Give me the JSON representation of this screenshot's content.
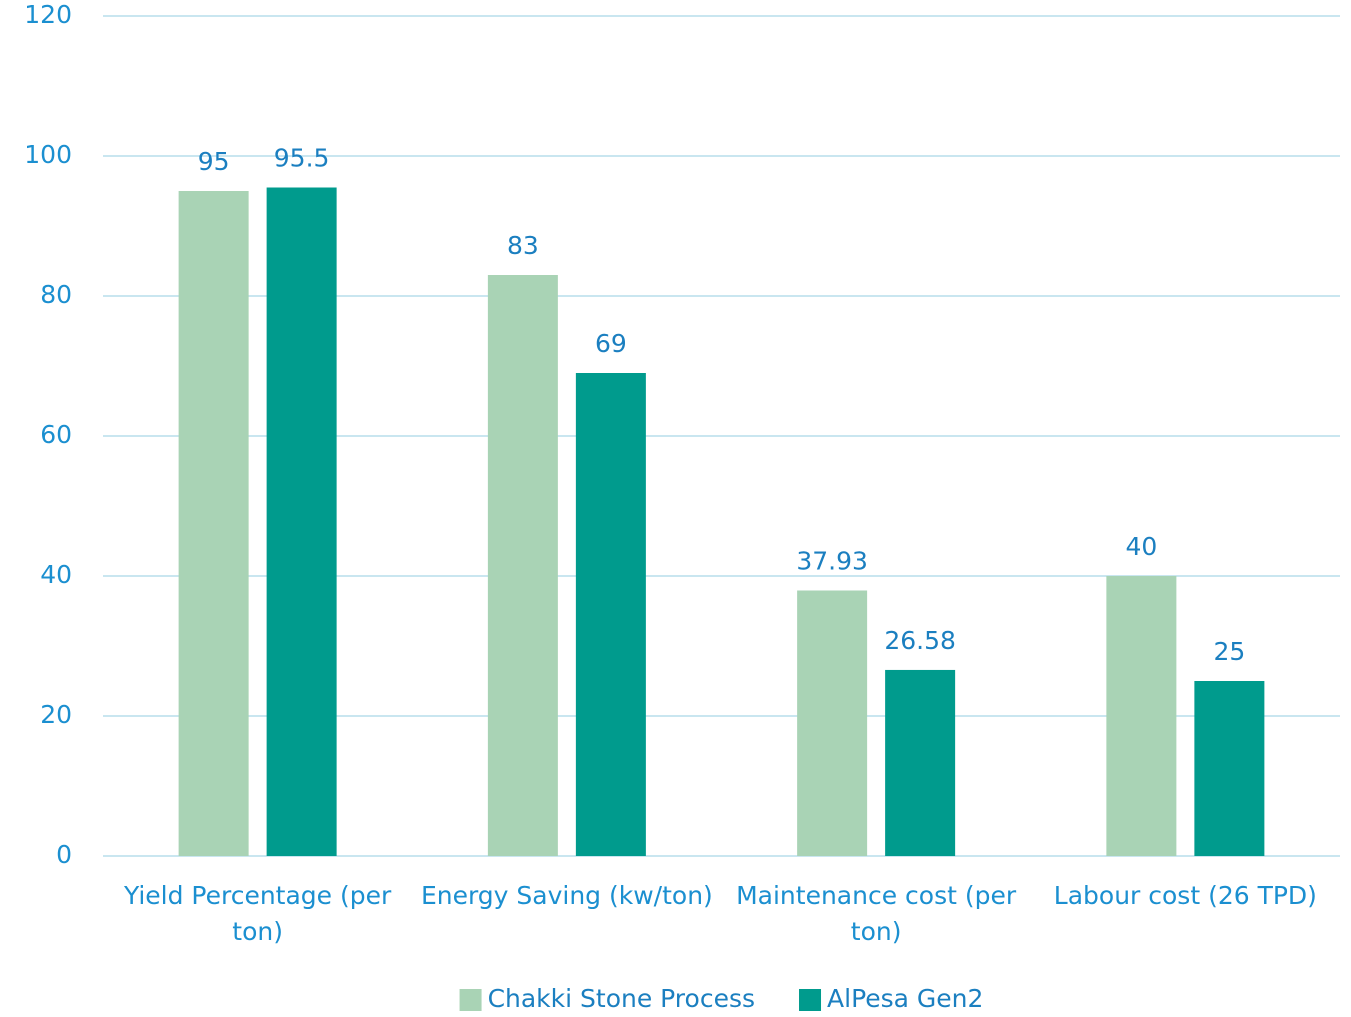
{
  "chart_data": {
    "type": "bar",
    "categories": [
      "Yield Percentage (per ton)",
      "Energy Saving (kw/ton)",
      "Maintenance cost (per ton)",
      "Labour cost (26 TPD)"
    ],
    "series": [
      {
        "name": "Chakki Stone Process",
        "color": "#a9d3b5",
        "values": [
          95,
          83,
          37.93,
          40
        ]
      },
      {
        "name": "AlPesa Gen2",
        "color": "#009b8d",
        "values": [
          95.5,
          69,
          26.58,
          25
        ]
      }
    ],
    "ylim": [
      0,
      120
    ],
    "yticks": [
      0,
      20,
      40,
      60,
      80,
      100,
      120
    ],
    "grid": true,
    "legend": "bottom"
  }
}
